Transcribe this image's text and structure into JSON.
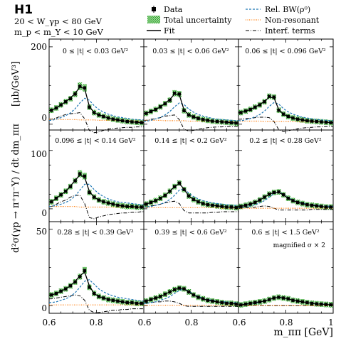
{
  "chart_data": {
    "type": "line",
    "experiment": "H1",
    "header_lines": [
      "20 < W_γp < 80 GeV",
      "m_p < m_Y < 10 GeV"
    ],
    "ylabel_left": "d²σ(γp → π⁺π⁻Y) / dt dm_ππ",
    "ylabel_unit": "[μb/GeV³]",
    "xlabel": "m_ππ [GeV]",
    "xticks": [
      "0.6",
      "0.8",
      "1",
      "0.6",
      "0.8",
      "0.6",
      "0.8"
    ],
    "row_yticks": [
      [
        "200",
        "0"
      ],
      [
        "100",
        "0"
      ],
      [
        "50",
        "0"
      ]
    ],
    "row_ylim": [
      [
        -15,
        220
      ],
      [
        -22,
        135
      ],
      [
        -5,
        55
      ]
    ],
    "xlim": [
      0.6,
      1.0
    ],
    "legend": [
      {
        "marker": "Data",
        "label": "Data"
      },
      {
        "marker": "band",
        "label": "Total uncertainty"
      },
      {
        "marker": "solid",
        "label": "Fit"
      },
      {
        "marker": "dashed-blue",
        "label": "Rel. BW(ρ⁰)"
      },
      {
        "marker": "dotted-orange",
        "label": "Non-resonant"
      },
      {
        "marker": "dashdot",
        "label": "Interf. terms"
      }
    ],
    "colors": {
      "fit": "#000000",
      "bw": "#1f77b4",
      "nonres": "#ff7f0e",
      "interf": "#000000",
      "band": "#2ca02c",
      "data": "#000000"
    },
    "panels": [
      {
        "label": "0 ≤ |t| < 0.03 GeV²",
        "x": [
          0.61,
          0.63,
          0.65,
          0.67,
          0.69,
          0.71,
          0.73,
          0.75,
          0.77,
          0.79,
          0.81,
          0.83,
          0.85,
          0.87,
          0.89,
          0.91,
          0.93,
          0.95,
          0.97,
          0.99
        ],
        "data": [
          36,
          42,
          50,
          58,
          66,
          78,
          98,
          94,
          44,
          30,
          24,
          20,
          16,
          13,
          11,
          9,
          7,
          6,
          5,
          4
        ],
        "fit": [
          36,
          42,
          50,
          58,
          68,
          80,
          96,
          92,
          46,
          30,
          24,
          20,
          16,
          13,
          11,
          9,
          7,
          6,
          5,
          4
        ],
        "bw": [
          10,
          13,
          17,
          22,
          29,
          40,
          55,
          67,
          62,
          48,
          38,
          31,
          26,
          22,
          19,
          17,
          15,
          13,
          12,
          11
        ],
        "nonres": [
          13,
          13,
          12,
          12,
          12,
          12,
          11,
          11,
          11,
          11,
          10,
          10,
          10,
          10,
          9,
          9,
          9,
          9,
          8,
          8
        ],
        "interf": [
          13,
          16,
          21,
          25,
          27,
          28,
          30,
          14,
          -16,
          -22,
          -20,
          -16,
          -13,
          -11,
          -10,
          -9,
          -8,
          -8,
          -7,
          -7
        ]
      },
      {
        "label": "0.03 ≤ |t| < 0.06 GeV²",
        "x": [
          0.61,
          0.63,
          0.65,
          0.67,
          0.69,
          0.71,
          0.73,
          0.75,
          0.77,
          0.79,
          0.81,
          0.83,
          0.85,
          0.87,
          0.89,
          0.91,
          0.93,
          0.95,
          0.97,
          0.99
        ],
        "data": [
          28,
          33,
          38,
          45,
          53,
          62,
          80,
          78,
          35,
          24,
          19,
          15,
          12,
          10,
          8,
          7,
          6,
          5,
          4,
          3
        ],
        "fit": [
          28,
          33,
          38,
          45,
          54,
          64,
          78,
          76,
          37,
          24,
          19,
          15,
          12,
          10,
          8,
          7,
          6,
          5,
          4,
          3
        ],
        "bw": [
          8,
          10,
          14,
          18,
          24,
          33,
          45,
          55,
          51,
          39,
          31,
          25,
          21,
          18,
          15,
          13,
          12,
          11,
          10,
          9
        ],
        "nonres": [
          10,
          10,
          10,
          10,
          9,
          9,
          9,
          9,
          9,
          8,
          8,
          8,
          8,
          8,
          7,
          7,
          7,
          7,
          7,
          6
        ],
        "interf": [
          10,
          13,
          14,
          17,
          21,
          22,
          24,
          12,
          -13,
          -18,
          -16,
          -13,
          -11,
          -9,
          -8,
          -7,
          -7,
          -6,
          -6,
          -6
        ]
      },
      {
        "label": "0.06 ≤ |t| < 0.096 GeV²",
        "x": [
          0.61,
          0.63,
          0.65,
          0.67,
          0.69,
          0.71,
          0.73,
          0.75,
          0.77,
          0.79,
          0.81,
          0.83,
          0.85,
          0.87,
          0.89,
          0.91,
          0.93,
          0.95,
          0.97,
          0.99
        ],
        "data": [
          30,
          34,
          38,
          44,
          50,
          58,
          72,
          70,
          36,
          26,
          20,
          16,
          13,
          11,
          9,
          8,
          7,
          6,
          5,
          4
        ],
        "fit": [
          30,
          34,
          38,
          44,
          51,
          59,
          70,
          68,
          38,
          26,
          20,
          16,
          13,
          11,
          9,
          8,
          7,
          6,
          5,
          4
        ],
        "bw": [
          9,
          11,
          15,
          19,
          25,
          34,
          46,
          56,
          52,
          40,
          32,
          26,
          22,
          18,
          16,
          14,
          12,
          11,
          10,
          9
        ],
        "nonres": [
          8,
          8,
          8,
          8,
          8,
          7,
          7,
          7,
          7,
          7,
          7,
          7,
          6,
          6,
          6,
          6,
          6,
          6,
          6,
          5
        ],
        "interf": [
          13,
          15,
          15,
          17,
          18,
          18,
          17,
          7,
          -14,
          -19,
          -17,
          -14,
          -12,
          -10,
          -9,
          -8,
          -7,
          -7,
          -6,
          -6
        ]
      },
      {
        "label": "0.096 ≤ |t| < 0.14 GeV²",
        "x": [
          0.61,
          0.63,
          0.65,
          0.67,
          0.69,
          0.71,
          0.73,
          0.75,
          0.77,
          0.79,
          0.81,
          0.83,
          0.85,
          0.87,
          0.89,
          0.91,
          0.93,
          0.95,
          0.97,
          0.99
        ],
        "data": [
          12,
          18,
          24,
          30,
          38,
          48,
          60,
          56,
          28,
          20,
          15,
          12,
          10,
          8,
          6,
          5,
          4,
          4,
          3,
          3
        ],
        "fit": [
          12,
          18,
          24,
          30,
          39,
          49,
          58,
          54,
          30,
          20,
          15,
          12,
          10,
          8,
          6,
          5,
          4,
          4,
          3,
          3
        ],
        "bw": [
          4,
          6,
          8,
          11,
          15,
          22,
          32,
          42,
          42,
          33,
          26,
          21,
          17,
          14,
          12,
          11,
          10,
          9,
          8,
          7
        ],
        "nonres": [
          4,
          4,
          4,
          4,
          4,
          4,
          3,
          3,
          3,
          3,
          3,
          3,
          3,
          3,
          3,
          3,
          2,
          2,
          2,
          2
        ],
        "interf": [
          4,
          8,
          12,
          15,
          20,
          23,
          23,
          9,
          -15,
          -17,
          -14,
          -12,
          -10,
          -9,
          -8,
          -7,
          -7,
          -6,
          -6,
          -5
        ]
      },
      {
        "label": "0.14 ≤ |t| < 0.2 GeV²",
        "x": [
          0.61,
          0.63,
          0.65,
          0.67,
          0.69,
          0.71,
          0.73,
          0.75,
          0.77,
          0.79,
          0.81,
          0.83,
          0.85,
          0.87,
          0.89,
          0.91,
          0.93,
          0.95,
          0.97,
          0.99
        ],
        "data": [
          8,
          11,
          14,
          18,
          23,
          30,
          38,
          44,
          33,
          22,
          16,
          12,
          9,
          7,
          6,
          5,
          4,
          3,
          3,
          2
        ],
        "fit": [
          8,
          11,
          14,
          18,
          23,
          30,
          38,
          43,
          34,
          22,
          16,
          12,
          9,
          7,
          6,
          5,
          4,
          3,
          3,
          2
        ],
        "bw": [
          3,
          4,
          6,
          8,
          11,
          16,
          23,
          32,
          34,
          27,
          21,
          17,
          14,
          12,
          10,
          9,
          8,
          7,
          6,
          6
        ],
        "nonres": [
          2,
          2,
          2,
          2,
          2,
          2,
          2,
          2,
          2,
          2,
          2,
          2,
          2,
          2,
          2,
          2,
          1,
          1,
          1,
          1
        ],
        "interf": [
          3,
          5,
          6,
          8,
          10,
          12,
          13,
          9,
          -3,
          -7,
          -7,
          -7,
          -7,
          -7,
          -6,
          -6,
          -5,
          -5,
          -5,
          -5
        ]
      },
      {
        "label": "0.2 ≤ |t| < 0.28 GeV²",
        "x": [
          0.61,
          0.63,
          0.65,
          0.67,
          0.69,
          0.71,
          0.73,
          0.75,
          0.77,
          0.79,
          0.81,
          0.83,
          0.85,
          0.87,
          0.89,
          0.91,
          0.93,
          0.95,
          0.97,
          0.99
        ],
        "data": [
          4,
          6,
          8,
          11,
          15,
          20,
          25,
          28,
          29,
          24,
          18,
          14,
          11,
          9,
          7,
          6,
          5,
          4,
          3,
          3
        ],
        "fit": [
          4,
          6,
          8,
          11,
          15,
          20,
          25,
          28,
          28,
          24,
          18,
          14,
          11,
          9,
          7,
          6,
          5,
          4,
          3,
          3
        ],
        "bw": [
          2,
          3,
          5,
          7,
          10,
          14,
          20,
          26,
          29,
          25,
          19,
          15,
          12,
          10,
          8,
          7,
          6,
          5,
          5,
          4
        ],
        "nonres": [
          1,
          1,
          1,
          1,
          1,
          1,
          1,
          1,
          1,
          1,
          1,
          1,
          1,
          1,
          1,
          1,
          1,
          1,
          1,
          1
        ],
        "interf": [
          1,
          2,
          2,
          3,
          4,
          5,
          4,
          1,
          -2,
          -2,
          -2,
          -2,
          -2,
          -2,
          -2,
          -1,
          -1,
          -1,
          -1,
          -1
        ]
      },
      {
        "label": "0.28 ≤ |t| < 0.39 GeV²",
        "x": [
          0.61,
          0.63,
          0.65,
          0.67,
          0.69,
          0.71,
          0.73,
          0.75,
          0.77,
          0.79,
          0.81,
          0.83,
          0.85,
          0.87,
          0.89,
          0.91,
          0.93,
          0.95,
          0.97,
          0.99
        ],
        "data": [
          7,
          8,
          9.5,
          11,
          13,
          15.5,
          19,
          23,
          12,
          8,
          6,
          5,
          4,
          3.5,
          3,
          2.5,
          2,
          2,
          1.5,
          1.5
        ],
        "fit": [
          7,
          8,
          9.5,
          11,
          13,
          16,
          19.5,
          22,
          13,
          8,
          6,
          5,
          4,
          3.5,
          3,
          2.5,
          2,
          2,
          1.5,
          1.5
        ],
        "bw": [
          2,
          2.5,
          3.5,
          4.5,
          6,
          8.5,
          12,
          16,
          17,
          14,
          11,
          9,
          7.5,
          6.5,
          5.5,
          5,
          4.5,
          4,
          3.5,
          3
        ],
        "nonres": [
          0.5,
          0.5,
          0.5,
          0.5,
          0.5,
          0.5,
          0.5,
          0.5,
          0.5,
          0.5,
          0.5,
          0.5,
          0.5,
          0.5,
          0.5,
          0.5,
          0.5,
          0.5,
          0.5,
          0.5
        ],
        "interf": [
          4.5,
          5,
          5.5,
          6,
          6.5,
          7,
          6.5,
          3.5,
          -3,
          -4.5,
          -4.5,
          -4,
          -3.5,
          -3,
          -3,
          -2.5,
          -2.5,
          -2,
          -2,
          -2
        ]
      },
      {
        "label": "0.39 ≤ |t| < 0.6 GeV²",
        "x": [
          0.61,
          0.63,
          0.65,
          0.67,
          0.69,
          0.71,
          0.73,
          0.75,
          0.77,
          0.79,
          0.81,
          0.83,
          0.85,
          0.87,
          0.89,
          0.91,
          0.93,
          0.95,
          0.97,
          0.99
        ],
        "data": [
          3,
          4,
          5,
          6,
          7.5,
          9,
          10.5,
          11.5,
          11,
          9,
          7,
          5.5,
          4.5,
          3.5,
          3,
          2.5,
          2,
          1.5,
          1.5,
          1
        ],
        "fit": [
          3,
          4,
          5,
          6,
          7.5,
          9,
          10.5,
          11.5,
          11,
          9,
          7,
          5.5,
          4.5,
          3.5,
          3,
          2.5,
          2,
          1.5,
          1.5,
          1
        ],
        "bw": [
          1.5,
          2,
          2.5,
          3.5,
          4.5,
          6,
          8,
          10,
          11,
          9.5,
          7.5,
          6,
          5,
          4,
          3.5,
          3,
          2.5,
          2.5,
          2,
          2
        ],
        "nonres": [
          0.3,
          0.3,
          0.3,
          0.3,
          0.3,
          0.3,
          0.3,
          0.3,
          0.3,
          0.3,
          0.3,
          0.3,
          0.3,
          0.3,
          0.3,
          0.3,
          0.3,
          0.3,
          0.3,
          0.3
        ],
        "interf": [
          1.5,
          2,
          2.5,
          2.5,
          3,
          3,
          2.5,
          1.5,
          0,
          -0.5,
          -0.5,
          -0.5,
          -0.5,
          -0.5,
          -0.5,
          -0.5,
          -0.5,
          -0.5,
          -0.5,
          -0.5
        ]
      },
      {
        "label": "0.6 ≤ |t| < 1.5 GeV²",
        "note": "magnified σ × 2",
        "x": [
          0.61,
          0.63,
          0.65,
          0.67,
          0.69,
          0.71,
          0.73,
          0.75,
          0.77,
          0.79,
          0.81,
          0.83,
          0.85,
          0.87,
          0.89,
          0.91,
          0.93,
          0.95,
          0.97,
          0.99
        ],
        "data": [
          0.5,
          1,
          1.5,
          2,
          2.5,
          3,
          4,
          5,
          5.5,
          5,
          4.5,
          3.5,
          3,
          2.5,
          2,
          1.5,
          1.2,
          1,
          0.8,
          0.6
        ],
        "fit": [
          0.5,
          1,
          1.5,
          2,
          2.5,
          3,
          4,
          5,
          5.5,
          5,
          4.5,
          3.5,
          3,
          2.5,
          2,
          1.5,
          1.2,
          1,
          0.8,
          0.6
        ],
        "bw": [
          0.5,
          0.8,
          1.2,
          1.6,
          2.2,
          3,
          4,
          5,
          5.5,
          5,
          4.5,
          3.5,
          3,
          2.5,
          2,
          1.6,
          1.3,
          1.1,
          0.9,
          0.7
        ],
        "nonres": [
          0.1,
          0.1,
          0.1,
          0.1,
          0.1,
          0.1,
          0.1,
          0.1,
          0.1,
          0.1,
          0.1,
          0.1,
          0.1,
          0.1,
          0.1,
          0.1,
          0.1,
          0.1,
          0.1,
          0.1
        ],
        "interf": [
          0,
          0.2,
          0.3,
          0.4,
          0.3,
          0,
          0,
          0,
          0,
          0,
          0,
          0,
          0,
          0,
          0,
          0,
          0,
          0,
          0,
          0
        ]
      }
    ]
  }
}
